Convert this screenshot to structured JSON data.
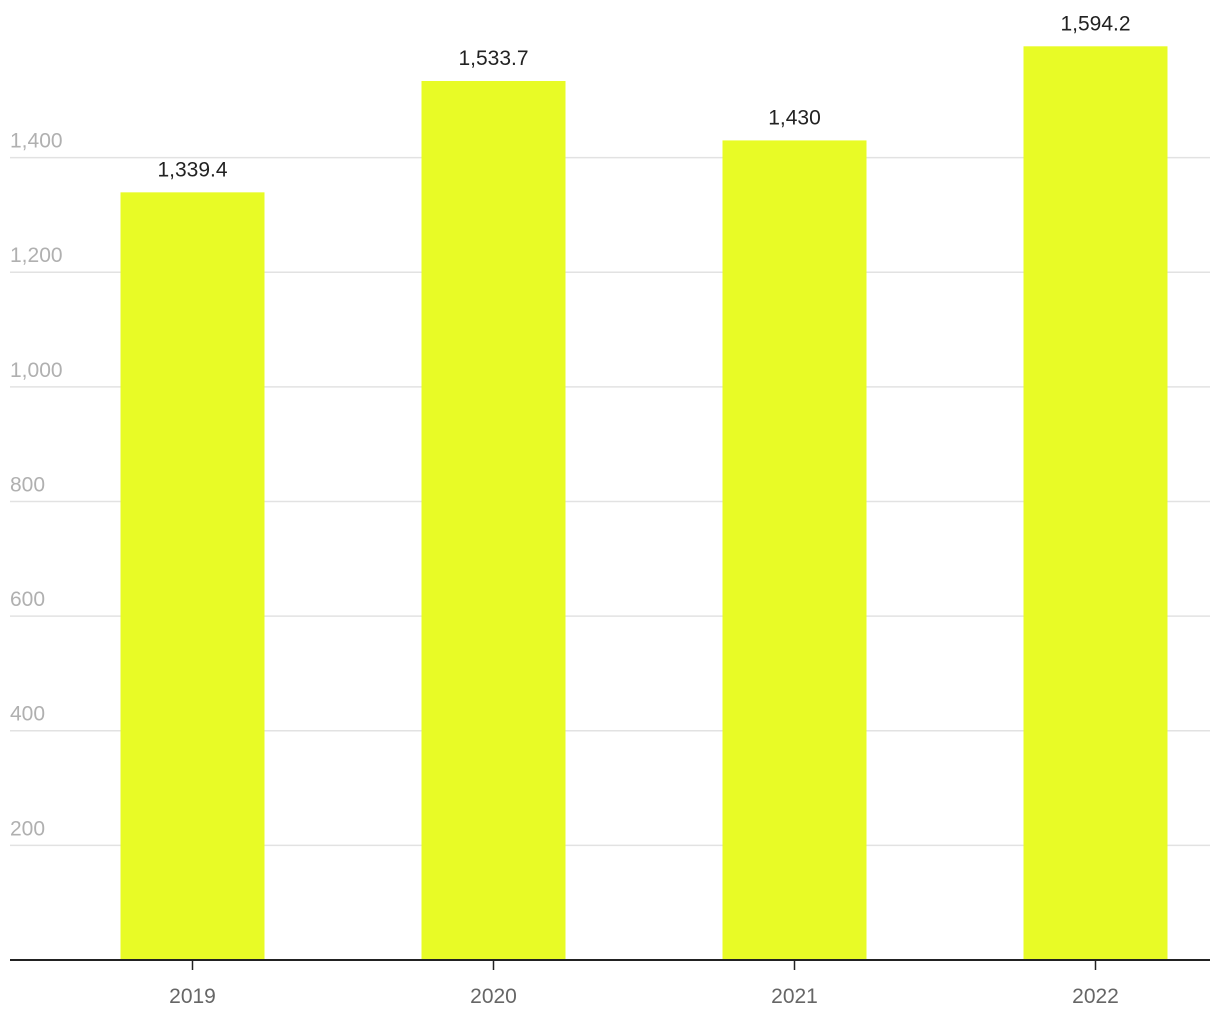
{
  "chart_data": {
    "type": "bar",
    "categories": [
      "2019",
      "2020",
      "2021",
      "2022"
    ],
    "values": [
      1339.4,
      1533.7,
      1430,
      1594.2
    ],
    "value_labels": [
      "1,339.4",
      "1,533.7",
      "1,430",
      "1,594.2"
    ],
    "color": "#e8fb26",
    "ylim": [
      0,
      1675
    ],
    "yticks": [
      200,
      400,
      600,
      800,
      {
        "value": 1000,
        "label": "1,000"
      },
      {
        "value": 1200,
        "label": "1,200"
      },
      {
        "value": 1400,
        "label": "1,400"
      }
    ],
    "grid": true
  }
}
